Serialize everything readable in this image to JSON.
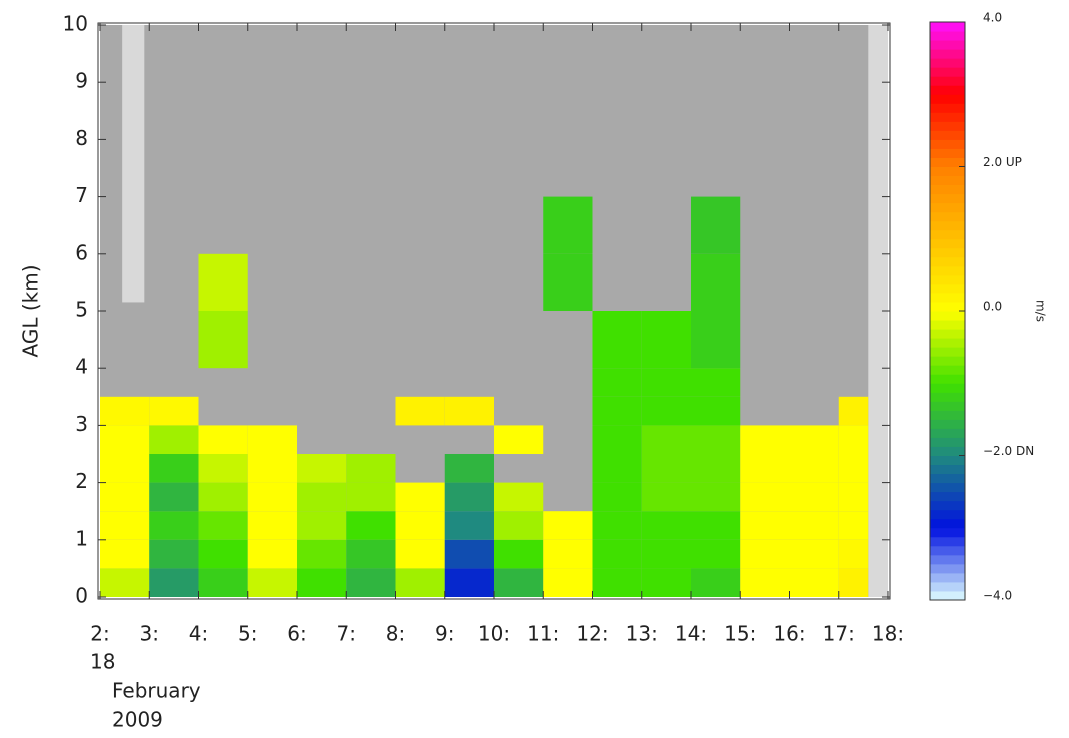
{
  "chart_data": {
    "type": "heatmap",
    "y_label": "AGL (km)",
    "x_edges": [
      2,
      3,
      4,
      5,
      6,
      7,
      8,
      9,
      10,
      11,
      12,
      13,
      14,
      15,
      16,
      17,
      17.6
    ],
    "y_edges": [
      0,
      0.5,
      1,
      1.5,
      2,
      2.5,
      3,
      3.5,
      4,
      5,
      6,
      7
    ],
    "z": [
      [
        -0.3,
        -1.8,
        -1.2,
        -0.3,
        -1,
        -1.5,
        -0.5,
        -2.8,
        -1.5,
        0,
        -1,
        -1,
        -1.2,
        0,
        0,
        0.2
      ],
      [
        0,
        -1.5,
        -1,
        0,
        -0.8,
        -1.3,
        0,
        -2.5,
        -1,
        0,
        -1,
        -1,
        -1,
        0,
        0,
        0.1
      ],
      [
        0,
        -1.2,
        -0.8,
        0,
        -0.5,
        -1,
        0,
        -2,
        -0.5,
        0,
        -1,
        -1,
        -1,
        0,
        0,
        0
      ],
      [
        0,
        -1.5,
        -0.5,
        0,
        -0.5,
        -0.5,
        0,
        -1.8,
        -0.3,
        null,
        -1,
        -0.8,
        -0.8,
        0,
        0,
        0
      ],
      [
        0,
        -1.2,
        -0.3,
        0,
        -0.3,
        -0.5,
        null,
        -1.5,
        null,
        null,
        -1,
        -0.8,
        -0.8,
        0,
        0,
        0
      ],
      [
        0,
        -0.5,
        0,
        0,
        null,
        null,
        null,
        null,
        0,
        null,
        -1,
        -0.8,
        -0.8,
        0,
        0,
        0
      ],
      [
        0.1,
        0.1,
        null,
        null,
        null,
        null,
        0.2,
        0.2,
        null,
        null,
        -1,
        -1,
        -1,
        null,
        null,
        0.2
      ],
      [
        null,
        null,
        null,
        null,
        null,
        null,
        null,
        null,
        null,
        null,
        -1,
        -1,
        -1,
        null,
        null,
        null
      ],
      [
        null,
        null,
        -0.5,
        null,
        null,
        null,
        null,
        null,
        null,
        null,
        -1,
        -1,
        -1.2,
        null,
        null,
        null
      ],
      [
        null,
        null,
        -0.3,
        null,
        null,
        null,
        null,
        null,
        null,
        -1.2,
        null,
        null,
        -1.2,
        null,
        null,
        null
      ],
      [
        null,
        null,
        null,
        null,
        null,
        null,
        null,
        null,
        null,
        -1.2,
        null,
        null,
        -1.3,
        null,
        null,
        null
      ]
    ],
    "no_data_spans": [
      [
        2.45,
        2.9,
        5.15,
        10
      ],
      [
        17.6,
        18,
        0,
        10
      ]
    ],
    "background_color": "#a9a9a9",
    "no_data_color": "#d9d9d9",
    "xlim": [
      2,
      18
    ],
    "ylim": [
      0,
      10
    ],
    "xticks": [
      {
        "value": 2,
        "label": "2:"
      },
      {
        "value": 3,
        "label": "3:"
      },
      {
        "value": 4,
        "label": "4:"
      },
      {
        "value": 5,
        "label": "5:"
      },
      {
        "value": 6,
        "label": "6:"
      },
      {
        "value": 7,
        "label": "7:"
      },
      {
        "value": 8,
        "label": "8:"
      },
      {
        "value": 9,
        "label": "9:"
      },
      {
        "value": 10,
        "label": "10:"
      },
      {
        "value": 11,
        "label": "11:"
      },
      {
        "value": 12,
        "label": "12:"
      },
      {
        "value": 13,
        "label": "13:"
      },
      {
        "value": 14,
        "label": "14:"
      },
      {
        "value": 15,
        "label": "15:"
      },
      {
        "value": 16,
        "label": "16:"
      },
      {
        "value": 17,
        "label": "17:"
      },
      {
        "value": 18,
        "label": "18:"
      }
    ],
    "yticks": [
      0,
      1,
      2,
      3,
      4,
      5,
      6,
      7,
      8,
      9,
      10
    ],
    "date_label": [
      "18",
      "February",
      "2009"
    ],
    "clim": [
      -4,
      4
    ],
    "colorscale": [
      "#e0ffff",
      "#0010e0",
      "#1f8a80",
      "#40e000",
      "#ffff00",
      "#ffc000",
      "#ff8000",
      "#ff0000",
      "#ff10ff"
    ],
    "cbar_ticks": [
      {
        "value": 4,
        "label": "4.0"
      },
      {
        "value": 2,
        "label": "2.0 UP"
      },
      {
        "value": 0,
        "label": "0.0"
      },
      {
        "value": -2,
        "label": "−2.0 DN"
      },
      {
        "value": -4,
        "label": "−4.0"
      }
    ],
    "cbar_label": "m/s"
  }
}
